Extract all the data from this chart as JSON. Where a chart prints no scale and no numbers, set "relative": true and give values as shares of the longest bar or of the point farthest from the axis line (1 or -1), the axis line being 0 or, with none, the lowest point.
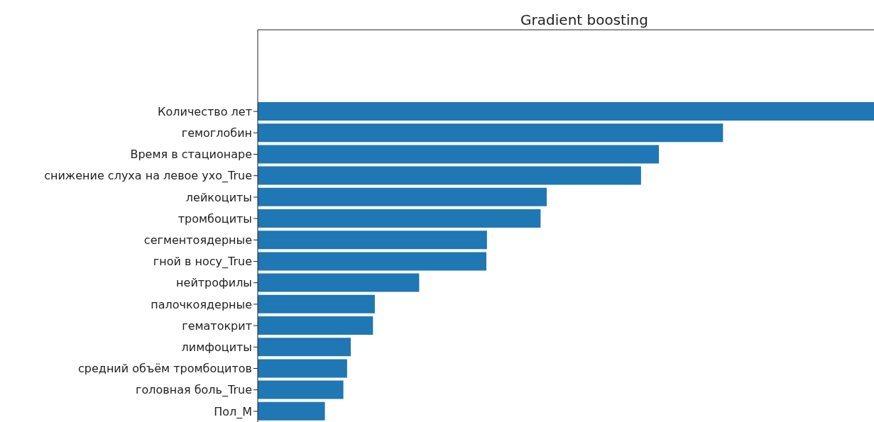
{
  "chart_data": {
    "type": "bar",
    "orientation": "horizontal",
    "relative": true,
    "title": "Gradient boosting",
    "color": "#1f77b4",
    "categories": [
      "Количество лет",
      "гемоглобин",
      "Время в стационаре",
      "снижение слуха на левое ухо_True",
      "лейкоциты",
      "тромбоциты",
      "сегментоядерные",
      "гной в носу_True",
      "нейтрофилы",
      "палочкоядерные",
      "гематокрит",
      "лимфоциты",
      "средний объём тромбоцитов",
      "головная боль_True",
      "Пол_М"
    ],
    "values": [
      1,
      0.755,
      0.651,
      0.622,
      0.469,
      0.459,
      0.372,
      0.371,
      0.262,
      0.19,
      0.187,
      0.151,
      0.145,
      0.139,
      0.109
    ],
    "grid": false,
    "legend": false
  }
}
